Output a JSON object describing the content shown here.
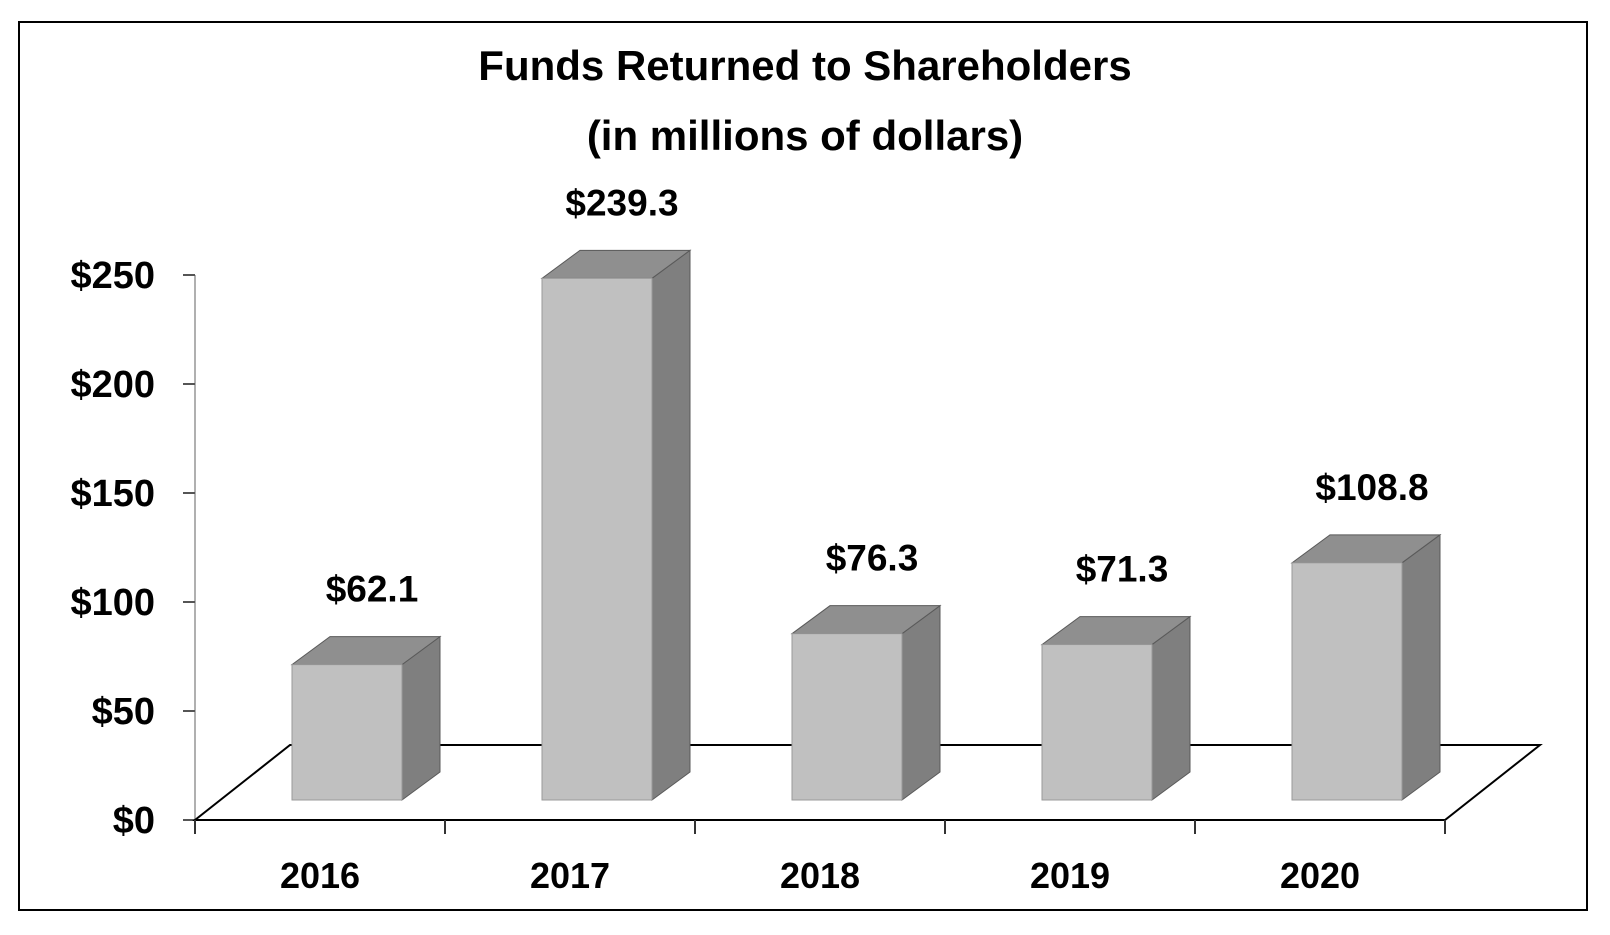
{
  "chart_data": {
    "type": "bar",
    "title_lines": [
      "Funds Returned to Shareholders",
      "(in millions of dollars)"
    ],
    "categories": [
      "2016",
      "2017",
      "2018",
      "2019",
      "2020"
    ],
    "values": [
      62.1,
      239.3,
      76.3,
      71.3,
      108.8
    ],
    "value_labels": [
      "$62.1",
      "$239.3",
      "$76.3",
      "$71.3",
      "$108.8"
    ],
    "y_ticks": [
      0,
      50,
      100,
      150,
      200,
      250
    ],
    "y_tick_labels": [
      "$0",
      "$50",
      "$100",
      "$150",
      "$200",
      "$250"
    ],
    "ylim": [
      0,
      250
    ],
    "xlabel": "",
    "ylabel": "",
    "style": "3d-column",
    "colors": {
      "front": "#c0c0c0",
      "side": "#7f7f7f",
      "top": "#8f8f8f",
      "floor_line": "#000000",
      "axis": "#b0b0b0"
    }
  }
}
